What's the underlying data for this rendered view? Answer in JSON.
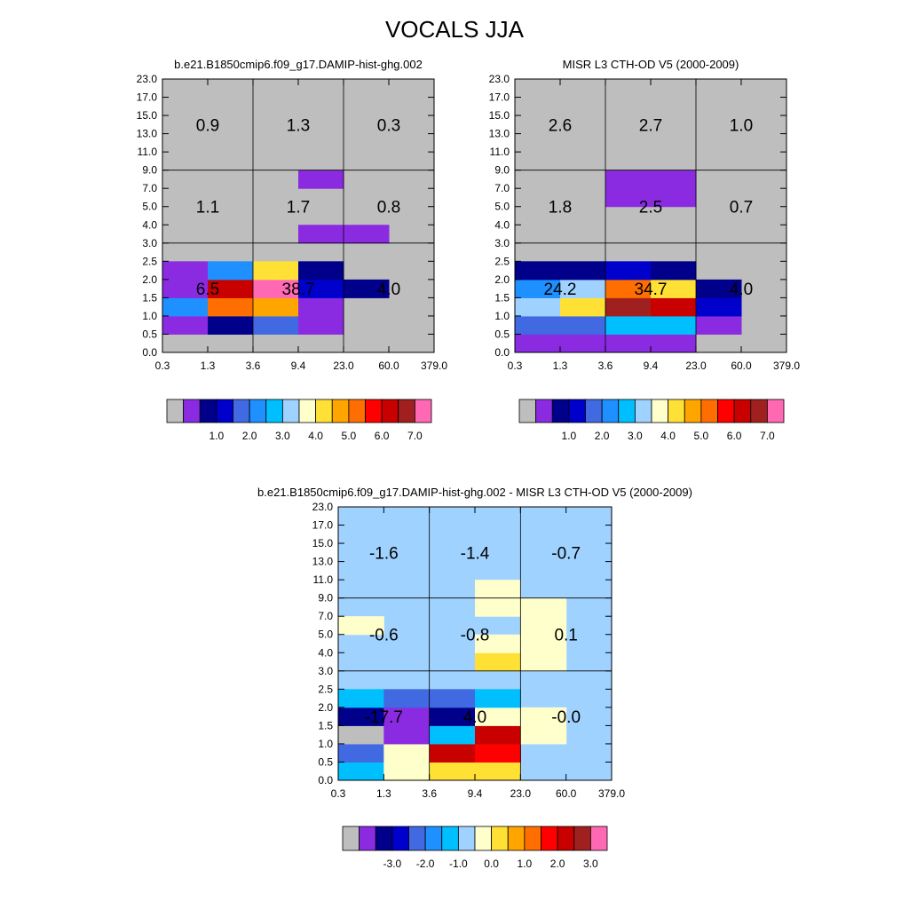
{
  "title": "VOCALS JJA",
  "colors": {
    "background_cell": "#bebebe",
    "diff_background_cell": "#a0d2ff",
    "frame": "#000000"
  },
  "palette": [
    "#bebebe",
    "#8a2be2",
    "#00008b",
    "#0000cd",
    "#4169e1",
    "#1e90ff",
    "#00bfff",
    "#a0d2ff",
    "#ffffcc",
    "#ffe135",
    "#ffa500",
    "#ff6e00",
    "#ff0000",
    "#c80000",
    "#a02020",
    "#ff69b4"
  ],
  "chart_data": [
    {
      "type": "heatmap",
      "name": "model-panel",
      "title": "b.e21.B1850cmip6.f09_g17.DAMIP-hist-ghg.002",
      "xticks": [
        "0.3",
        "1.3",
        "3.6",
        "9.4",
        "23.0",
        "60.0",
        "379.0"
      ],
      "yticks": [
        "0.0",
        "0.5",
        "1.0",
        "1.5",
        "2.0",
        "2.5",
        "3.0",
        "4.0",
        "5.0",
        "7.0",
        "9.0",
        "11.0",
        "13.0",
        "15.0",
        "17.0",
        "23.0"
      ],
      "background_color": 0,
      "grid_lines": {
        "x": [
          2,
          4
        ],
        "y": [
          6,
          10
        ]
      },
      "cells": [
        [
          1,
          0,
          1
        ],
        [
          1,
          1,
          2
        ],
        [
          1,
          2,
          4
        ],
        [
          1,
          3,
          1
        ],
        [
          2,
          0,
          5
        ],
        [
          2,
          1,
          11
        ],
        [
          2,
          2,
          10
        ],
        [
          2,
          3,
          1
        ],
        [
          3,
          0,
          1
        ],
        [
          3,
          1,
          13
        ],
        [
          3,
          2,
          15
        ],
        [
          3,
          3,
          3
        ],
        [
          4,
          0,
          1
        ],
        [
          4,
          1,
          5
        ],
        [
          4,
          2,
          9
        ],
        [
          4,
          3,
          2
        ],
        [
          3,
          4,
          2
        ],
        [
          6,
          3,
          1
        ],
        [
          6,
          4,
          1
        ],
        [
          9,
          3,
          1
        ]
      ],
      "annotations": [
        {
          "text": "6.5",
          "col": 1,
          "row": 3.5
        },
        {
          "text": "38.7",
          "col": 3,
          "row": 3.5
        },
        {
          "text": "4.0",
          "col": 5,
          "row": 3.5
        },
        {
          "text": "1.1",
          "col": 1,
          "row": 8
        },
        {
          "text": "1.7",
          "col": 3,
          "row": 8
        },
        {
          "text": "0.8",
          "col": 5,
          "row": 8
        },
        {
          "text": "0.9",
          "col": 1,
          "row": 12.5
        },
        {
          "text": "1.3",
          "col": 3,
          "row": 12.5
        },
        {
          "text": "0.3",
          "col": 5,
          "row": 12.5
        }
      ],
      "colorbar": {
        "labels": [
          "1.0",
          "2.0",
          "3.0",
          "4.0",
          "5.0",
          "6.0",
          "7.0"
        ]
      }
    },
    {
      "type": "heatmap",
      "name": "obs-panel",
      "title": "MISR L3 CTH-OD V5 (2000-2009)",
      "xticks": [
        "0.3",
        "1.3",
        "3.6",
        "9.4",
        "23.0",
        "60.0",
        "379.0"
      ],
      "yticks": [
        "0.0",
        "0.5",
        "1.0",
        "1.5",
        "2.0",
        "2.5",
        "3.0",
        "4.0",
        "5.0",
        "7.0",
        "9.0",
        "11.0",
        "13.0",
        "15.0",
        "17.0",
        "23.0"
      ],
      "background_color": 0,
      "grid_lines": {
        "x": [
          2,
          4
        ],
        "y": [
          6,
          10
        ]
      },
      "cells": [
        [
          0,
          0,
          1
        ],
        [
          0,
          1,
          1
        ],
        [
          0,
          2,
          1
        ],
        [
          0,
          3,
          1
        ],
        [
          1,
          0,
          4
        ],
        [
          1,
          1,
          4
        ],
        [
          1,
          2,
          6
        ],
        [
          1,
          3,
          6
        ],
        [
          1,
          4,
          1
        ],
        [
          2,
          0,
          7
        ],
        [
          2,
          1,
          9
        ],
        [
          2,
          2,
          14
        ],
        [
          2,
          3,
          13
        ],
        [
          2,
          4,
          3
        ],
        [
          3,
          0,
          5
        ],
        [
          3,
          1,
          7
        ],
        [
          3,
          2,
          11
        ],
        [
          3,
          3,
          9
        ],
        [
          3,
          4,
          2
        ],
        [
          4,
          0,
          2
        ],
        [
          4,
          1,
          2
        ],
        [
          4,
          2,
          3
        ],
        [
          4,
          3,
          2
        ],
        [
          8,
          2,
          1
        ],
        [
          8,
          3,
          1
        ],
        [
          9,
          2,
          1
        ],
        [
          9,
          3,
          1
        ]
      ],
      "annotations": [
        {
          "text": "24.2",
          "col": 1,
          "row": 3.5
        },
        {
          "text": "34.7",
          "col": 3,
          "row": 3.5
        },
        {
          "text": "4.0",
          "col": 5,
          "row": 3.5
        },
        {
          "text": "1.8",
          "col": 1,
          "row": 8
        },
        {
          "text": "2.5",
          "col": 3,
          "row": 8
        },
        {
          "text": "0.7",
          "col": 5,
          "row": 8
        },
        {
          "text": "2.6",
          "col": 1,
          "row": 12.5
        },
        {
          "text": "2.7",
          "col": 3,
          "row": 12.5
        },
        {
          "text": "1.0",
          "col": 5,
          "row": 12.5
        }
      ],
      "colorbar": {
        "labels": [
          "1.0",
          "2.0",
          "3.0",
          "4.0",
          "5.0",
          "6.0",
          "7.0"
        ]
      }
    },
    {
      "type": "heatmap",
      "name": "diff-panel",
      "title": "b.e21.B1850cmip6.f09_g17.DAMIP-hist-ghg.002 - MISR L3 CTH-OD V5 (2000-2009)",
      "xticks": [
        "0.3",
        "1.3",
        "3.6",
        "9.4",
        "23.0",
        "60.0",
        "379.0"
      ],
      "yticks": [
        "0.0",
        "0.5",
        "1.0",
        "1.5",
        "2.0",
        "2.5",
        "3.0",
        "4.0",
        "5.0",
        "7.0",
        "9.0",
        "11.0",
        "13.0",
        "15.0",
        "17.0",
        "23.0"
      ],
      "background_color": 7,
      "grid_lines": {
        "x": [
          2,
          4
        ],
        "y": [
          6,
          10
        ]
      },
      "cells": [
        [
          0,
          0,
          6
        ],
        [
          0,
          1,
          8
        ],
        [
          0,
          2,
          9
        ],
        [
          0,
          3,
          9
        ],
        [
          1,
          0,
          4
        ],
        [
          1,
          1,
          8
        ],
        [
          1,
          2,
          13
        ],
        [
          1,
          3,
          12
        ],
        [
          2,
          0,
          0
        ],
        [
          2,
          1,
          1
        ],
        [
          2,
          2,
          6
        ],
        [
          2,
          3,
          13
        ],
        [
          2,
          4,
          8
        ],
        [
          3,
          0,
          2
        ],
        [
          3,
          1,
          1
        ],
        [
          3,
          2,
          2
        ],
        [
          3,
          3,
          8
        ],
        [
          3,
          4,
          8
        ],
        [
          4,
          0,
          6
        ],
        [
          4,
          1,
          4
        ],
        [
          4,
          2,
          4
        ],
        [
          4,
          3,
          6
        ],
        [
          6,
          3,
          9
        ],
        [
          6,
          4,
          8
        ],
        [
          7,
          3,
          8
        ],
        [
          7,
          4,
          8
        ],
        [
          8,
          0,
          8
        ],
        [
          8,
          4,
          8
        ],
        [
          9,
          3,
          8
        ],
        [
          9,
          4,
          8
        ],
        [
          10,
          3,
          8
        ]
      ],
      "annotations": [
        {
          "text": "-17.7",
          "col": 1,
          "row": 3.5
        },
        {
          "text": "4.0",
          "col": 3,
          "row": 3.5
        },
        {
          "text": "-0.0",
          "col": 5,
          "row": 3.5
        },
        {
          "text": "-0.6",
          "col": 1,
          "row": 8
        },
        {
          "text": "-0.8",
          "col": 3,
          "row": 8
        },
        {
          "text": "0.1",
          "col": 5,
          "row": 8
        },
        {
          "text": "-1.6",
          "col": 1,
          "row": 12.5
        },
        {
          "text": "-1.4",
          "col": 3,
          "row": 12.5
        },
        {
          "text": "-0.7",
          "col": 5,
          "row": 12.5
        }
      ],
      "colorbar": {
        "labels": [
          "-3.0",
          "-2.0",
          "-1.0",
          "0.0",
          "1.0",
          "2.0",
          "3.0"
        ]
      }
    }
  ]
}
